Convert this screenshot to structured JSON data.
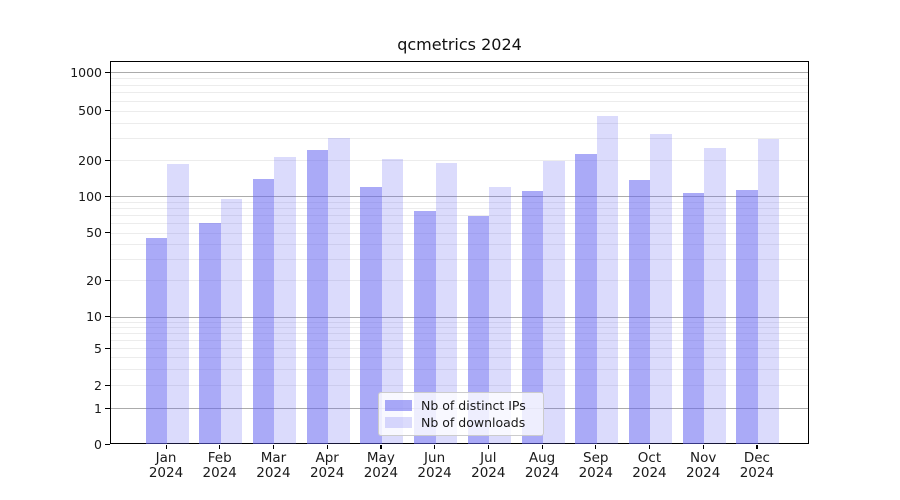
{
  "title": "qcmetrics 2024",
  "chart_data": {
    "type": "bar",
    "title": "qcmetrics 2024",
    "categories": [
      "Jan 2024",
      "Feb 2024",
      "Mar 2024",
      "Apr 2024",
      "May 2024",
      "Jun 2024",
      "Jul 2024",
      "Aug 2024",
      "Sep 2024",
      "Oct 2024",
      "Nov 2024",
      "Dec 2024"
    ],
    "series": [
      {
        "name": "Nb of distinct IPs",
        "values": [
          45,
          60,
          140,
          240,
          120,
          75,
          68,
          110,
          225,
          135,
          105,
          112
        ]
      },
      {
        "name": "Nb of downloads",
        "values": [
          185,
          95,
          210,
          300,
          205,
          190,
          120,
          195,
          450,
          325,
          250,
          295
        ]
      }
    ],
    "yscale": "symlog",
    "ylim": [
      0,
      1250
    ],
    "y_ticks": [
      0,
      1,
      2,
      5,
      10,
      20,
      50,
      100,
      200,
      500,
      1000
    ],
    "grid": "major and minor horizontal gridlines",
    "legend_position": "lower center"
  },
  "legend": {
    "items": [
      "Nb of distinct IPs",
      "Nb of downloads"
    ]
  },
  "colors": {
    "bar_primary": "rgba(100,100,240,0.55)",
    "bar_secondary": "rgba(100,100,240,0.23)",
    "grid_major": "#ababab",
    "grid_minor": "#ececec",
    "axis": "#000000",
    "text": "#1a1a1a",
    "legend_border": "#cccccc"
  }
}
